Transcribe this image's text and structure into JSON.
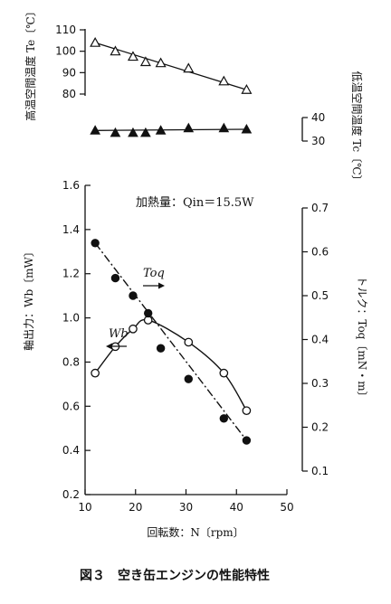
{
  "caption": "図３　空き缶エンジンの性能特性",
  "chart_data": [
    {
      "type": "scatter",
      "ylabel": "高温空間温度 Te〔℃〕",
      "yticks": [
        80,
        90,
        100,
        110
      ],
      "ylim": [
        80,
        110
      ],
      "xlim": [
        0,
        50
      ],
      "series": [
        {
          "marker": "open-triangle",
          "x": [
            12,
            16,
            19.5,
            22,
            25,
            30.5,
            37.5,
            42
          ],
          "values": [
            104,
            100,
            97.5,
            95,
            94.5,
            92,
            86,
            82
          ]
        }
      ],
      "trend": {
        "x": [
          12,
          42
        ],
        "values": [
          104,
          82
        ]
      }
    },
    {
      "type": "scatter",
      "ylabel": "低温空間温度 Tc〔℃〕",
      "yticks": [
        30,
        40
      ],
      "series": [
        {
          "marker": "filled-triangle",
          "x": [
            12,
            16,
            19.5,
            22,
            25,
            30.5,
            37.5,
            42
          ],
          "values": [
            34.5,
            33.5,
            33.5,
            33.5,
            34.5,
            35.5,
            35.5,
            35
          ]
        }
      ],
      "trend": {
        "x": [
          12,
          42
        ],
        "values": [
          34.5,
          35
        ]
      }
    },
    {
      "type": "line",
      "annotation": "加熱量：Qin＝15.5W",
      "xlabel": "回転数：N〔rpm〕",
      "xticks": [
        10,
        20,
        30,
        40,
        50
      ],
      "xlim": [
        10,
        50
      ],
      "y_left": {
        "label": "軸出力：Wb〔mW〕",
        "ticks": [
          "0.2",
          "0.4",
          "0.6",
          "0.8",
          "1.0",
          "1.2",
          "1.4",
          "1.6"
        ],
        "lim": [
          0.2,
          1.6
        ]
      },
      "y_right": {
        "label": "トルク：Toq〔mN・m〕",
        "ticks": [
          "0.1",
          "0.2",
          "0.3",
          "0.4",
          "0.5",
          "0.6",
          "0.7"
        ],
        "lim": [
          0.1,
          0.7
        ]
      },
      "series": [
        {
          "name": "Wb",
          "axis": "left",
          "marker": "open-circle",
          "style": "solid",
          "x": [
            12,
            16,
            19.5,
            22.5,
            30.5,
            37.5,
            42
          ],
          "values": [
            0.75,
            0.87,
            0.95,
            0.99,
            0.89,
            0.75,
            0.58
          ]
        },
        {
          "name": "Toq",
          "axis": "right",
          "marker": "filled-circle",
          "style": "dash-dot",
          "x": [
            12,
            16,
            19.5,
            22.5,
            25,
            30.5,
            37.5,
            42
          ],
          "values": [
            0.62,
            0.54,
            0.5,
            0.46,
            0.38,
            0.31,
            0.22,
            0.17
          ]
        }
      ]
    }
  ]
}
